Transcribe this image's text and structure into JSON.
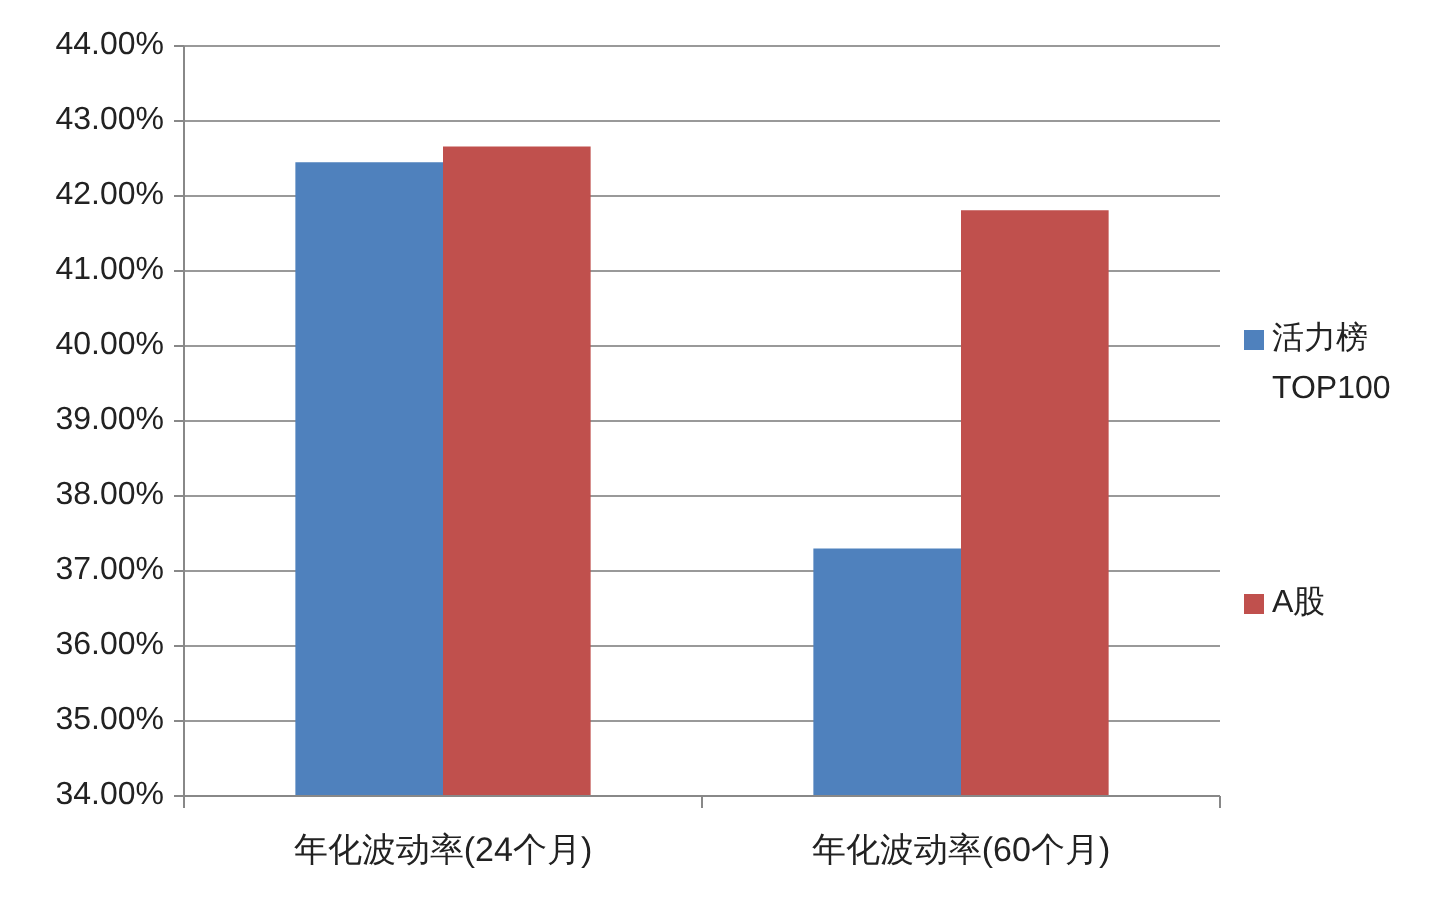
{
  "chart_data": {
    "type": "bar",
    "categories": [
      "年化波动率(24个月)",
      "年化波动率(60个月)"
    ],
    "series": [
      {
        "name": "活力榜 TOP100",
        "color": "#4f81bd",
        "values": [
          42.45,
          37.3
        ]
      },
      {
        "name": "A股",
        "color": "#c0504d",
        "values": [
          42.66,
          41.81
        ]
      }
    ],
    "ylim": [
      34,
      44
    ],
    "yticks": [
      {
        "value": 34,
        "label": "34.00%"
      },
      {
        "value": 35,
        "label": "35.00%"
      },
      {
        "value": 36,
        "label": "36.00%"
      },
      {
        "value": 37,
        "label": "37.00%"
      },
      {
        "value": 38,
        "label": "38.00%"
      },
      {
        "value": 39,
        "label": "39.00%"
      },
      {
        "value": 40,
        "label": "40.00%"
      },
      {
        "value": 41,
        "label": "41.00%"
      },
      {
        "value": 42,
        "label": "42.00%"
      },
      {
        "value": 43,
        "label": "43.00%"
      },
      {
        "value": 44,
        "label": "44.00%"
      }
    ],
    "grid": "y",
    "legend": "right"
  }
}
